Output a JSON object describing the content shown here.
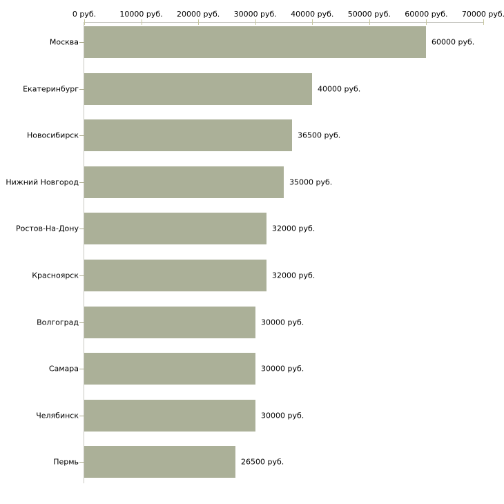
{
  "chart_data": {
    "type": "bar",
    "orientation": "horizontal",
    "title": "",
    "xlabel": "",
    "ylabel": "",
    "legend": "none",
    "grid": false,
    "axis_position": "top",
    "categories": [
      "Москва",
      "Екатеринбург",
      "Новосибирск",
      "Нижний Новгород",
      "Ростов-На-Дону",
      "Красноярск",
      "Волгоград",
      "Самара",
      "Челябинск",
      "Пермь"
    ],
    "values": [
      60000,
      40000,
      36500,
      35000,
      32000,
      32000,
      30000,
      30000,
      30000,
      26500
    ],
    "value_labels": [
      "60000 руб.",
      "40000 руб.",
      "36500 руб.",
      "35000 руб.",
      "32000 руб.",
      "32000 руб.",
      "30000 руб.",
      "30000 руб.",
      "30000 руб.",
      "26500 руб."
    ],
    "x_ticks": [
      0,
      10000,
      20000,
      30000,
      40000,
      50000,
      60000,
      70000
    ],
    "x_tick_labels": [
      "0 руб.",
      "10000 руб.",
      "20000 руб.",
      "30000 руб.",
      "40000 руб.",
      "50000 руб.",
      "60000 руб.",
      "70000 руб."
    ],
    "xlim": [
      0,
      70000
    ],
    "colors": {
      "bar": "#abb098",
      "axis_line": "#c6c6c0",
      "top_tick": "#c6c69e",
      "category_tick": "#a9a98a",
      "text": "#000000",
      "background": "#ffffff"
    }
  }
}
